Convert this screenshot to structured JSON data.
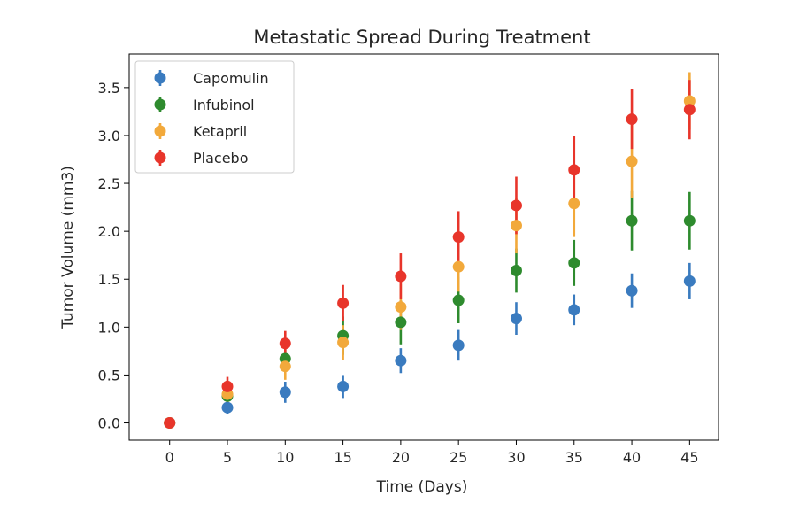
{
  "chart_data": {
    "type": "scatter",
    "title": "Metastatic Spread During Treatment",
    "xlabel": "Time (Days)",
    "ylabel": "Tumor Volume (mm3)",
    "xlim": [
      -3.5,
      47.5
    ],
    "ylim": [
      -0.18,
      3.85
    ],
    "xticks": [
      0,
      5,
      10,
      15,
      20,
      25,
      30,
      35,
      40,
      45
    ],
    "yticks": [
      0.0,
      0.5,
      1.0,
      1.5,
      2.0,
      2.5,
      3.0,
      3.5
    ],
    "xtick_labels": [
      "0",
      "5",
      "10",
      "15",
      "20",
      "25",
      "30",
      "35",
      "40",
      "45"
    ],
    "ytick_labels": [
      "0.0",
      "0.5",
      "1.0",
      "1.5",
      "2.0",
      "2.5",
      "3.0",
      "3.5"
    ],
    "grid": false,
    "legend_position": "top-left",
    "error_bars": true,
    "x": [
      0,
      5,
      10,
      15,
      20,
      25,
      30,
      35,
      40,
      45
    ],
    "series": [
      {
        "name": "Capomulin",
        "color": "#3a7bbf",
        "values": [
          0.0,
          0.16,
          0.32,
          0.38,
          0.65,
          0.81,
          1.09,
          1.18,
          1.38,
          1.48
        ],
        "errors": [
          0.0,
          0.07,
          0.11,
          0.12,
          0.13,
          0.16,
          0.17,
          0.16,
          0.18,
          0.19
        ]
      },
      {
        "name": "Infubinol",
        "color": "#2e8b2e",
        "values": [
          0.0,
          0.28,
          0.67,
          0.91,
          1.05,
          1.28,
          1.59,
          1.67,
          2.11,
          2.11
        ],
        "errors": [
          0.0,
          0.09,
          0.13,
          0.2,
          0.23,
          0.24,
          0.23,
          0.24,
          0.31,
          0.3
        ]
      },
      {
        "name": "Ketapril",
        "color": "#f2a93b",
        "values": [
          0.0,
          0.3,
          0.59,
          0.84,
          1.21,
          1.63,
          2.06,
          2.29,
          2.73,
          3.36
        ],
        "errors": [
          0.0,
          0.1,
          0.14,
          0.18,
          0.24,
          0.26,
          0.29,
          0.35,
          0.38,
          0.3
        ]
      },
      {
        "name": "Placebo",
        "color": "#e8352b",
        "values": [
          0.0,
          0.38,
          0.83,
          1.25,
          1.53,
          1.94,
          2.27,
          2.64,
          3.17,
          3.27
        ],
        "errors": [
          0.0,
          0.1,
          0.13,
          0.19,
          0.24,
          0.27,
          0.3,
          0.35,
          0.31,
          0.31
        ]
      }
    ]
  }
}
